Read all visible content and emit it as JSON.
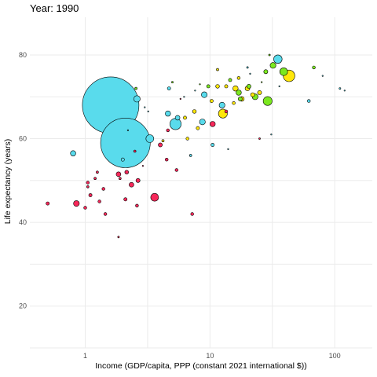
{
  "chart_data": {
    "type": "scatter",
    "title": "Year: 1990",
    "xlabel": "Income (GDP/capita, PPP (constant 2021 international $))",
    "ylabel": "Life expectancy (years)",
    "x_scale": "log",
    "xlim": [
      0.36,
      200
    ],
    "ylim": [
      10,
      89
    ],
    "x_ticks": [
      1,
      10,
      100
    ],
    "x_tick_labels": [
      "1",
      "10",
      "100"
    ],
    "y_ticks": [
      20,
      40,
      60,
      80
    ],
    "y_tick_labels": [
      "20",
      "40",
      "60",
      "80"
    ],
    "grid": true,
    "size_encoding": "population",
    "colors": {
      "red": "#f6285a",
      "cyan": "#59dbec",
      "yellow": "#ffe70a",
      "green": "#7be81f"
    },
    "points": [
      {
        "x": 1.6,
        "y": 68,
        "size": 1135,
        "color": "cyan"
      },
      {
        "x": 2.1,
        "y": 59,
        "size": 870,
        "color": "cyan"
      },
      {
        "x": 0.8,
        "y": 56.5,
        "size": 10,
        "color": "cyan"
      },
      {
        "x": 2.6,
        "y": 69.5,
        "size": 15,
        "color": "cyan"
      },
      {
        "x": 3.3,
        "y": 60,
        "size": 22,
        "color": "cyan"
      },
      {
        "x": 5.3,
        "y": 63.5,
        "size": 45,
        "color": "cyan"
      },
      {
        "x": 4.6,
        "y": 66,
        "size": 10,
        "color": "cyan"
      },
      {
        "x": 5.5,
        "y": 65,
        "size": 8,
        "color": "cyan"
      },
      {
        "x": 8.7,
        "y": 64,
        "size": 12,
        "color": "cyan"
      },
      {
        "x": 9.0,
        "y": 70.5,
        "size": 12,
        "color": "cyan"
      },
      {
        "x": 12.5,
        "y": 68,
        "size": 12,
        "color": "cyan"
      },
      {
        "x": 35.0,
        "y": 79,
        "size": 25,
        "color": "cyan"
      },
      {
        "x": 4.7,
        "y": 72,
        "size": 4,
        "color": "cyan"
      },
      {
        "x": 10.5,
        "y": 58.5,
        "size": 4,
        "color": "cyan"
      },
      {
        "x": 2.0,
        "y": 55,
        "size": 4,
        "color": "cyan"
      },
      {
        "x": 62.0,
        "y": 69,
        "size": 3,
        "color": "cyan"
      },
      {
        "x": 110.0,
        "y": 72,
        "size": 1,
        "color": "cyan"
      },
      {
        "x": 20.0,
        "y": 77,
        "size": 1,
        "color": "cyan"
      },
      {
        "x": 7.0,
        "y": 56,
        "size": 2,
        "color": "cyan"
      },
      {
        "x": 3.6,
        "y": 46,
        "size": 22,
        "color": "red"
      },
      {
        "x": 0.85,
        "y": 44.5,
        "size": 12,
        "color": "red"
      },
      {
        "x": 0.5,
        "y": 44.5,
        "size": 4,
        "color": "red"
      },
      {
        "x": 1.0,
        "y": 43.5,
        "size": 3,
        "color": "red"
      },
      {
        "x": 1.1,
        "y": 46.5,
        "size": 4,
        "color": "red"
      },
      {
        "x": 1.3,
        "y": 45,
        "size": 3,
        "color": "red"
      },
      {
        "x": 1.45,
        "y": 42,
        "size": 3,
        "color": "red"
      },
      {
        "x": 2.1,
        "y": 45.5,
        "size": 4,
        "color": "red"
      },
      {
        "x": 2.35,
        "y": 49,
        "size": 8,
        "color": "red"
      },
      {
        "x": 2.65,
        "y": 50,
        "size": 6,
        "color": "red"
      },
      {
        "x": 2.6,
        "y": 44,
        "size": 3,
        "color": "red"
      },
      {
        "x": 1.85,
        "y": 51.5,
        "size": 8,
        "color": "red"
      },
      {
        "x": 2.15,
        "y": 52,
        "size": 5,
        "color": "red"
      },
      {
        "x": 1.05,
        "y": 49.5,
        "size": 3,
        "color": "red"
      },
      {
        "x": 1.05,
        "y": 48.5,
        "size": 2,
        "color": "red"
      },
      {
        "x": 1.4,
        "y": 48,
        "size": 3,
        "color": "red"
      },
      {
        "x": 1.25,
        "y": 52,
        "size": 2,
        "color": "red"
      },
      {
        "x": 1.85,
        "y": 36.5,
        "size": 1,
        "color": "red"
      },
      {
        "x": 7.2,
        "y": 42,
        "size": 3,
        "color": "red"
      },
      {
        "x": 4.5,
        "y": 55,
        "size": 3,
        "color": "red"
      },
      {
        "x": 5.4,
        "y": 52.5,
        "size": 3,
        "color": "red"
      },
      {
        "x": 4.0,
        "y": 58.5,
        "size": 6,
        "color": "red"
      },
      {
        "x": 4.6,
        "y": 62,
        "size": 3,
        "color": "red"
      },
      {
        "x": 10.5,
        "y": 63.5,
        "size": 10,
        "color": "red"
      },
      {
        "x": 13.5,
        "y": 66.5,
        "size": 3,
        "color": "red"
      },
      {
        "x": 25.0,
        "y": 60,
        "size": 1,
        "color": "red"
      },
      {
        "x": 2.5,
        "y": 57,
        "size": 2,
        "color": "red"
      },
      {
        "x": 1.2,
        "y": 50.5,
        "size": 2,
        "color": "red"
      },
      {
        "x": 1.9,
        "y": 50.5,
        "size": 2,
        "color": "red"
      },
      {
        "x": 43.0,
        "y": 75,
        "size": 48,
        "color": "yellow"
      },
      {
        "x": 12.7,
        "y": 66,
        "size": 28,
        "color": "yellow"
      },
      {
        "x": 20.0,
        "y": 72,
        "size": 8,
        "color": "yellow"
      },
      {
        "x": 16.0,
        "y": 72,
        "size": 10,
        "color": "yellow"
      },
      {
        "x": 18.0,
        "y": 69.5,
        "size": 8,
        "color": "yellow"
      },
      {
        "x": 22.0,
        "y": 70.5,
        "size": 6,
        "color": "yellow"
      },
      {
        "x": 25.0,
        "y": 71,
        "size": 6,
        "color": "yellow"
      },
      {
        "x": 11.5,
        "y": 72.5,
        "size": 5,
        "color": "yellow"
      },
      {
        "x": 13.5,
        "y": 72.5,
        "size": 4,
        "color": "yellow"
      },
      {
        "x": 7.5,
        "y": 66.5,
        "size": 5,
        "color": "yellow"
      },
      {
        "x": 8.0,
        "y": 62.5,
        "size": 4,
        "color": "yellow"
      },
      {
        "x": 6.3,
        "y": 65,
        "size": 4,
        "color": "yellow"
      },
      {
        "x": 6.6,
        "y": 60,
        "size": 3,
        "color": "yellow"
      },
      {
        "x": 10.3,
        "y": 69,
        "size": 4,
        "color": "yellow"
      },
      {
        "x": 11.5,
        "y": 76.5,
        "size": 2,
        "color": "yellow"
      },
      {
        "x": 15.5,
        "y": 68.5,
        "size": 3,
        "color": "yellow"
      },
      {
        "x": 17.0,
        "y": 74.5,
        "size": 3,
        "color": "yellow"
      },
      {
        "x": 4.2,
        "y": 59.5,
        "size": 2,
        "color": "yellow"
      },
      {
        "x": 29.0,
        "y": 69,
        "size": 28,
        "color": "green"
      },
      {
        "x": 39.0,
        "y": 76,
        "size": 22,
        "color": "green"
      },
      {
        "x": 32.0,
        "y": 77.5,
        "size": 12,
        "color": "green"
      },
      {
        "x": 23.0,
        "y": 70,
        "size": 12,
        "color": "green"
      },
      {
        "x": 17.0,
        "y": 71,
        "size": 10,
        "color": "green"
      },
      {
        "x": 17.5,
        "y": 69.5,
        "size": 6,
        "color": "green"
      },
      {
        "x": 20.5,
        "y": 72.5,
        "size": 6,
        "color": "green"
      },
      {
        "x": 28.0,
        "y": 76,
        "size": 6,
        "color": "green"
      },
      {
        "x": 9.7,
        "y": 72.5,
        "size": 4,
        "color": "green"
      },
      {
        "x": 14.5,
        "y": 74,
        "size": 4,
        "color": "green"
      },
      {
        "x": 68.0,
        "y": 77,
        "size": 3,
        "color": "green"
      },
      {
        "x": 2.55,
        "y": 72,
        "size": 2,
        "color": "green"
      },
      {
        "x": 5.0,
        "y": 73.5,
        "size": 1,
        "color": "green"
      },
      {
        "x": 30.0,
        "y": 80,
        "size": 1,
        "color": "green"
      },
      {
        "x": 3.0,
        "y": 67.5,
        "size": 0.3,
        "color": "cyan"
      },
      {
        "x": 3.2,
        "y": 66.5,
        "size": 0.3,
        "color": "cyan"
      },
      {
        "x": 2.9,
        "y": 53.5,
        "size": 0.3,
        "color": "red"
      },
      {
        "x": 2.2,
        "y": 62,
        "size": 0.3,
        "color": "cyan"
      },
      {
        "x": 6.2,
        "y": 70,
        "size": 0.3,
        "color": "cyan"
      },
      {
        "x": 7.6,
        "y": 71.5,
        "size": 0.3,
        "color": "cyan"
      },
      {
        "x": 8.3,
        "y": 73,
        "size": 0.3,
        "color": "green"
      },
      {
        "x": 21.0,
        "y": 75.5,
        "size": 0.3,
        "color": "cyan"
      },
      {
        "x": 26.0,
        "y": 73.5,
        "size": 0.3,
        "color": "green"
      },
      {
        "x": 80.0,
        "y": 75,
        "size": 0.3,
        "color": "cyan"
      },
      {
        "x": 120.0,
        "y": 71.5,
        "size": 0.3,
        "color": "cyan"
      },
      {
        "x": 36.0,
        "y": 72.5,
        "size": 0.3,
        "color": "cyan"
      },
      {
        "x": 31.0,
        "y": 61,
        "size": 0.3,
        "color": "cyan"
      },
      {
        "x": 14.0,
        "y": 57.5,
        "size": 0.3,
        "color": "cyan"
      },
      {
        "x": 5.8,
        "y": 69.5,
        "size": 0.3,
        "color": "red"
      }
    ]
  }
}
